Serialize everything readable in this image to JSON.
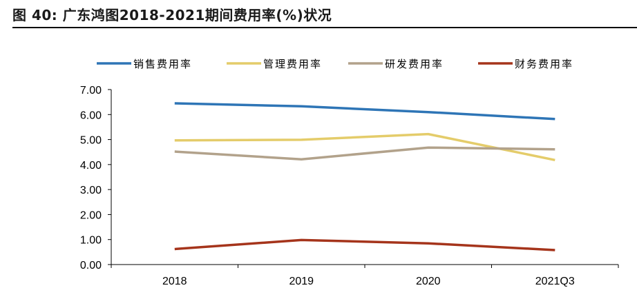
{
  "figure": {
    "title": "图  40:  广东鸿图2018-2021期间费用率(%)状况"
  },
  "chart_data": {
    "type": "line",
    "categories": [
      "2018",
      "2019",
      "2020",
      "2021Q3"
    ],
    "ylim": [
      0,
      7
    ],
    "ytick_step": 1,
    "ytick_labels": [
      "0.00",
      "1.00",
      "2.00",
      "3.00",
      "4.00",
      "5.00",
      "6.00",
      "7.00"
    ],
    "grid": false,
    "legend_position": "top",
    "series": [
      {
        "name": "销售费用率",
        "color": "#2E75B6",
        "values": [
          6.45,
          6.33,
          6.1,
          5.82
        ]
      },
      {
        "name": "管理费用率",
        "color": "#E4CC6A",
        "values": [
          4.97,
          4.99,
          5.22,
          4.18
        ]
      },
      {
        "name": "研发费用率",
        "color": "#B2A28B",
        "values": [
          4.52,
          4.21,
          4.68,
          4.61
        ]
      },
      {
        "name": "财务费用率",
        "color": "#A5341B",
        "values": [
          0.62,
          0.98,
          0.85,
          0.58
        ]
      }
    ]
  }
}
